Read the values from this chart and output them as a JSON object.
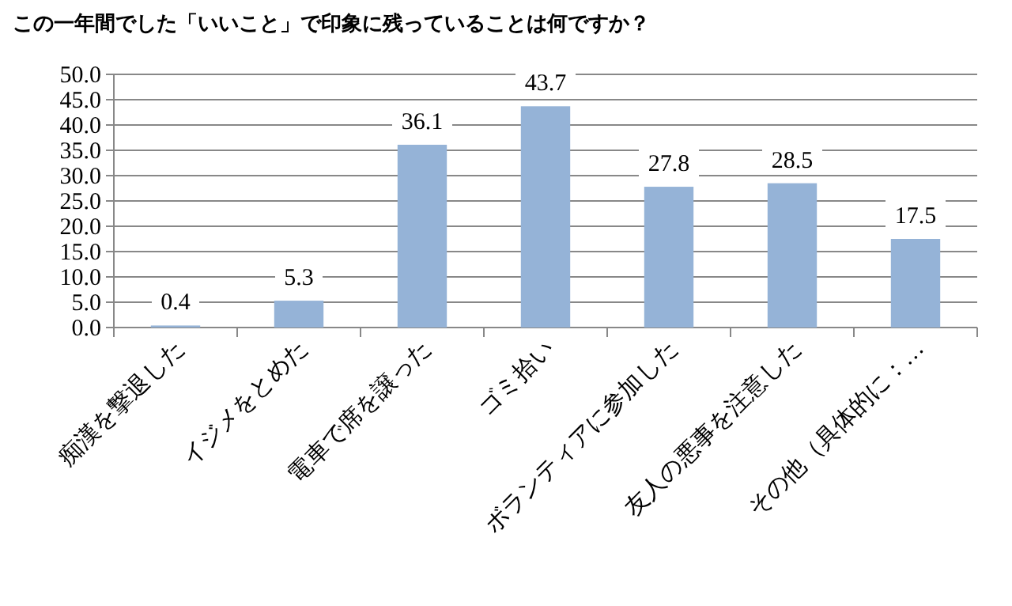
{
  "chart_data": {
    "type": "bar",
    "title": "この一年間でした「いいこと」で印象に残っていることは何ですか？",
    "categories": [
      "痴漢を撃退した",
      "イジメをとめた",
      "電車で席を譲った",
      "ゴミ拾い",
      "ボランティアに参加した",
      "友人の悪事を注意した",
      "その他（具体的に：…"
    ],
    "values": [
      0.4,
      5.3,
      36.1,
      43.7,
      27.8,
      28.5,
      17.5
    ],
    "color": "#95b3d7",
    "ylim": [
      0,
      50
    ],
    "yticks": [
      {
        "value": 0,
        "label": "0.0"
      },
      {
        "value": 5,
        "label": "5.0"
      },
      {
        "value": 10,
        "label": "10.0"
      },
      {
        "value": 15,
        "label": "15.0"
      },
      {
        "value": 20,
        "label": "20.0"
      },
      {
        "value": 25,
        "label": "25.0"
      },
      {
        "value": 30,
        "label": "30.0"
      },
      {
        "value": 35,
        "label": "35.0"
      },
      {
        "value": 40,
        "label": "40.0"
      },
      {
        "value": 45,
        "label": "45.0"
      },
      {
        "value": 50,
        "label": "50.0"
      }
    ],
    "grid": "y",
    "data_labels": true
  }
}
